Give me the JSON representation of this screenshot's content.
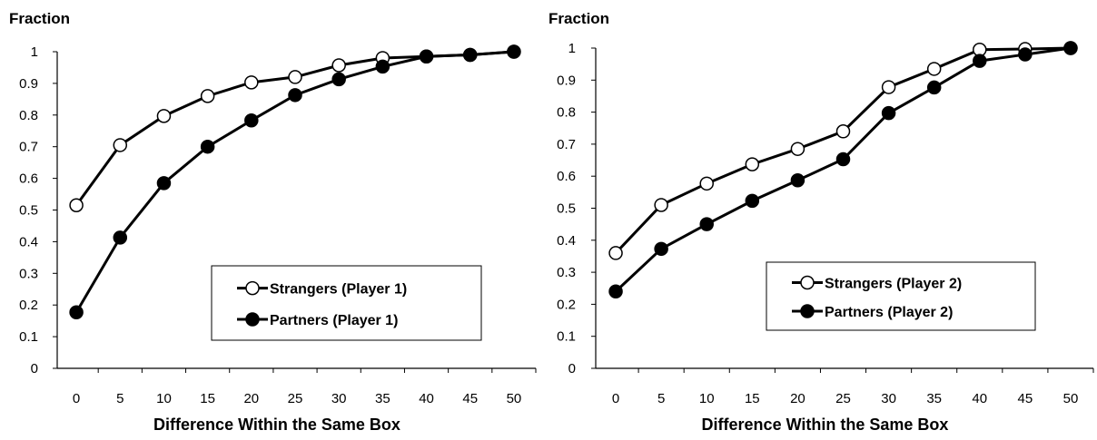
{
  "chart_data": [
    {
      "type": "line",
      "title": "",
      "ylabel": "Fraction",
      "xlabel": "Difference Within the Same Box",
      "x": [
        0,
        5,
        10,
        15,
        20,
        25,
        30,
        35,
        40,
        45,
        50
      ],
      "x_tick_labels": [
        "0",
        "5",
        "10",
        "15",
        "20",
        "25",
        "30",
        "35",
        "40",
        "45",
        "50"
      ],
      "y_tick_labels": [
        "0",
        "0.1",
        "0.2",
        "0.3",
        "0.4",
        "0.5",
        "0.6",
        "0.7",
        "0.8",
        "0.9",
        "1"
      ],
      "ylim": [
        0,
        1
      ],
      "grid": false,
      "legend_position": "lower-right",
      "series": [
        {
          "name": "Strangers (Player 1)",
          "marker": "open-circle",
          "values": [
            0.515,
            0.705,
            0.797,
            0.86,
            0.903,
            0.92,
            0.957,
            0.98,
            0.985,
            0.99,
            1.0
          ]
        },
        {
          "name": "Partners (Player 1)",
          "marker": "filled-circle",
          "values": [
            0.177,
            0.413,
            0.585,
            0.7,
            0.783,
            0.863,
            0.913,
            0.953,
            0.985,
            0.99,
            1.0
          ]
        }
      ]
    },
    {
      "type": "line",
      "title": "",
      "ylabel": "Fraction",
      "xlabel": "Difference Within the Same Box",
      "x": [
        0,
        5,
        10,
        15,
        20,
        25,
        30,
        35,
        40,
        45,
        50
      ],
      "x_tick_labels": [
        "0",
        "5",
        "10",
        "15",
        "20",
        "25",
        "30",
        "35",
        "40",
        "45",
        "50"
      ],
      "y_tick_labels": [
        "0",
        "0.1",
        "0.2",
        "0.3",
        "0.4",
        "0.5",
        "0.6",
        "0.7",
        "0.8",
        "0.9",
        "1"
      ],
      "ylim": [
        0,
        1
      ],
      "grid": false,
      "legend_position": "lower-right",
      "series": [
        {
          "name": "Strangers (Player 2)",
          "marker": "open-circle",
          "values": [
            0.36,
            0.51,
            0.577,
            0.637,
            0.685,
            0.74,
            0.878,
            0.935,
            0.995,
            0.997,
            1.0
          ]
        },
        {
          "name": "Partners (Player 2)",
          "marker": "filled-circle",
          "values": [
            0.24,
            0.373,
            0.45,
            0.523,
            0.587,
            0.653,
            0.797,
            0.877,
            0.96,
            0.98,
            1.0
          ]
        }
      ]
    }
  ]
}
